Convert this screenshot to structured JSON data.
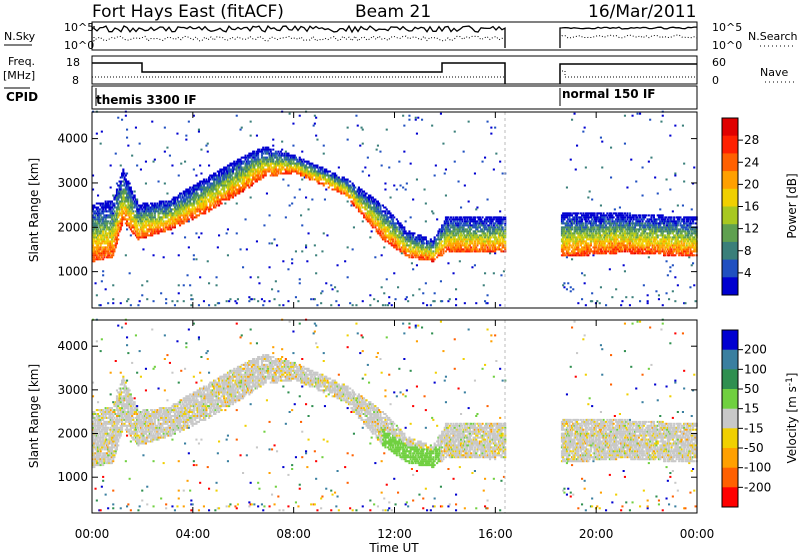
{
  "header": {
    "station": "Fort Hays East (fitACF)",
    "beam": "Beam 21",
    "date": "16/Mar/2011"
  },
  "panels": {
    "nsky": {
      "label": "N.Sky",
      "tick_top": "10^5",
      "tick_bottom": "10^0",
      "right_label": "N.Search",
      "right_top": "10^5",
      "right_bottom": "10^0"
    },
    "freq": {
      "label_line1": "Freq.",
      "label_line2": "[MHz]",
      "tick_top": "18",
      "tick_bottom": "8",
      "right_label": "Nave",
      "right_top": "60",
      "right_bottom": "0"
    },
    "cpid": {
      "label": "CPID",
      "segment1": "themis 3300 IF",
      "segment2": "normal 150 IF"
    }
  },
  "chart_data": [
    {
      "type": "heatmap",
      "title": "",
      "xlabel": "Time UT",
      "ylabel": "Slant Range [km]",
      "x_ticks": [
        "00:00",
        "04:00",
        "08:00",
        "12:00",
        "16:00",
        "20:00",
        "00:00"
      ],
      "x_range_hours": [
        0,
        24
      ],
      "y_ticks": [
        1000,
        2000,
        3000,
        4000
      ],
      "ylim": [
        180,
        4600
      ],
      "colorbar": {
        "label": "Power [dB]",
        "ticks": [
          4,
          8,
          12,
          16,
          20,
          24,
          28
        ],
        "colors": [
          "#0000d0",
          "#2050c0",
          "#3a7f7a",
          "#5fa050",
          "#a8c820",
          "#f0d000",
          "#ffa000",
          "#ff6000",
          "#ff2000",
          "#e00000"
        ],
        "range": [
          0,
          32
        ]
      },
      "data_gap_hours": [
        16.4,
        18.6
      ],
      "band_profile": [
        {
          "t": 0.0,
          "lo": 1200,
          "hi": 2500
        },
        {
          "t": 0.8,
          "lo": 1300,
          "hi": 2600
        },
        {
          "t": 1.2,
          "lo": 2100,
          "hi": 3300
        },
        {
          "t": 1.8,
          "lo": 1700,
          "hi": 2500
        },
        {
          "t": 3.0,
          "lo": 1900,
          "hi": 2600
        },
        {
          "t": 4.5,
          "lo": 2300,
          "hi": 3100
        },
        {
          "t": 6.0,
          "lo": 2800,
          "hi": 3600
        },
        {
          "t": 6.8,
          "lo": 3100,
          "hi": 3800
        },
        {
          "t": 8.0,
          "lo": 3200,
          "hi": 3600
        },
        {
          "t": 10.0,
          "lo": 2700,
          "hi": 3100
        },
        {
          "t": 11.5,
          "lo": 1700,
          "hi": 2500
        },
        {
          "t": 12.5,
          "lo": 1300,
          "hi": 1900
        },
        {
          "t": 13.5,
          "lo": 1200,
          "hi": 1700
        },
        {
          "t": 14.0,
          "lo": 1400,
          "hi": 2200
        },
        {
          "t": 16.4,
          "lo": 1400,
          "hi": 2200
        },
        {
          "t": 18.6,
          "lo": 1300,
          "hi": 2300
        },
        {
          "t": 21.0,
          "lo": 1400,
          "hi": 2300
        },
        {
          "t": 24.0,
          "lo": 1300,
          "hi": 2200
        }
      ]
    },
    {
      "type": "heatmap",
      "title": "",
      "xlabel": "Time UT",
      "ylabel": "Slant Range [km]",
      "x_ticks": [
        "00:00",
        "04:00",
        "08:00",
        "12:00",
        "16:00",
        "20:00",
        "00:00"
      ],
      "x_range_hours": [
        0,
        24
      ],
      "y_ticks": [
        1000,
        2000,
        3000,
        4000
      ],
      "ylim": [
        180,
        4600
      ],
      "colorbar": {
        "label": "Velocity [m s^-1]",
        "ticks": [
          200,
          100,
          50,
          15,
          -15,
          -50,
          -100,
          -200
        ],
        "colors": [
          "#0000d0",
          "#3a7fa0",
          "#2f8f50",
          "#70d040",
          "#c8c8c8",
          "#f0d000",
          "#ffa000",
          "#ff6000",
          "#ff0000"
        ],
        "range": [
          -250,
          250
        ]
      },
      "data_gap_hours": [
        16.4,
        18.6
      ]
    }
  ]
}
